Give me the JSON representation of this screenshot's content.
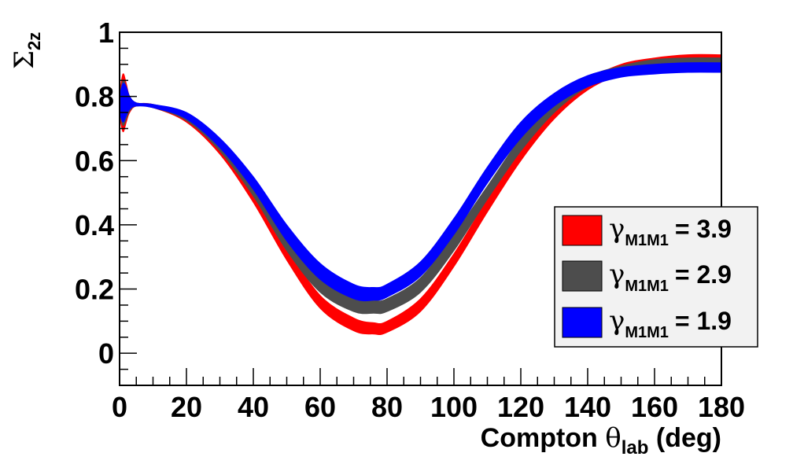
{
  "chart_data": {
    "type": "area",
    "title": "",
    "xlabel": {
      "main": "Compton ",
      "symbol": "θ",
      "sub": "lab",
      "tail": " (deg)"
    },
    "ylabel": {
      "main": "Σ",
      "sub": "2z"
    },
    "xlim": [
      0,
      180
    ],
    "ylim": [
      -0.1,
      1.0
    ],
    "x_ticks": [
      "0",
      "20",
      "40",
      "60",
      "80",
      "100",
      "120",
      "140",
      "160",
      "180"
    ],
    "y_ticks": [
      "0",
      "0.2",
      "0.4",
      "0.6",
      "0.8",
      "1"
    ],
    "grid": false,
    "legend_position": "right",
    "series": [
      {
        "name": "γM1M1 = 3.9",
        "symbol": "γ",
        "sub": "M1M1",
        "value_label": "= 3.9",
        "color": "#ff0000",
        "x": [
          0,
          1,
          2,
          3,
          5,
          10,
          20,
          30,
          40,
          50,
          60,
          70,
          76,
          80,
          90,
          100,
          110,
          120,
          130,
          140,
          150,
          160,
          170,
          180
        ],
        "lower": [
          0.74,
          0.69,
          0.72,
          0.75,
          0.77,
          0.765,
          0.72,
          0.62,
          0.47,
          0.29,
          0.14,
          0.07,
          0.06,
          0.065,
          0.13,
          0.27,
          0.44,
          0.6,
          0.73,
          0.82,
          0.87,
          0.9,
          0.91,
          0.91
        ],
        "upper": [
          0.81,
          0.87,
          0.84,
          0.8,
          0.78,
          0.775,
          0.74,
          0.65,
          0.51,
          0.33,
          0.18,
          0.11,
          0.095,
          0.1,
          0.17,
          0.31,
          0.48,
          0.64,
          0.76,
          0.85,
          0.9,
          0.92,
          0.93,
          0.93
        ]
      },
      {
        "name": "γM1M1 = 2.9",
        "symbol": "γ",
        "sub": "M1M1",
        "value_label": "= 2.9",
        "color": "#4d4d4d",
        "x": [
          0,
          1,
          2,
          3,
          5,
          10,
          20,
          30,
          40,
          50,
          60,
          70,
          76,
          80,
          90,
          100,
          110,
          120,
          130,
          140,
          150,
          160,
          170,
          180
        ],
        "lower": [
          0.75,
          0.71,
          0.73,
          0.755,
          0.77,
          0.765,
          0.725,
          0.63,
          0.49,
          0.32,
          0.19,
          0.13,
          0.125,
          0.13,
          0.19,
          0.32,
          0.48,
          0.63,
          0.75,
          0.83,
          0.87,
          0.895,
          0.9,
          0.9
        ],
        "upper": [
          0.8,
          0.85,
          0.83,
          0.8,
          0.78,
          0.775,
          0.745,
          0.66,
          0.53,
          0.37,
          0.24,
          0.175,
          0.165,
          0.17,
          0.235,
          0.37,
          0.52,
          0.67,
          0.78,
          0.86,
          0.895,
          0.915,
          0.92,
          0.92
        ]
      },
      {
        "name": "γM1M1 = 1.9",
        "symbol": "γ",
        "sub": "M1M1",
        "value_label": "= 1.9",
        "color": "#0000ff",
        "x": [
          0,
          1,
          2,
          3,
          5,
          10,
          20,
          30,
          40,
          50,
          60,
          70,
          76,
          80,
          90,
          100,
          110,
          120,
          130,
          140,
          150,
          160,
          170,
          180
        ],
        "lower": [
          0.75,
          0.72,
          0.74,
          0.76,
          0.77,
          0.765,
          0.73,
          0.64,
          0.51,
          0.35,
          0.23,
          0.17,
          0.165,
          0.175,
          0.24,
          0.37,
          0.53,
          0.67,
          0.77,
          0.83,
          0.86,
          0.87,
          0.875,
          0.875
        ],
        "upper": [
          0.8,
          0.84,
          0.83,
          0.8,
          0.78,
          0.775,
          0.75,
          0.67,
          0.55,
          0.4,
          0.28,
          0.215,
          0.205,
          0.215,
          0.285,
          0.42,
          0.58,
          0.72,
          0.81,
          0.865,
          0.89,
          0.9,
          0.905,
          0.905
        ]
      }
    ]
  }
}
